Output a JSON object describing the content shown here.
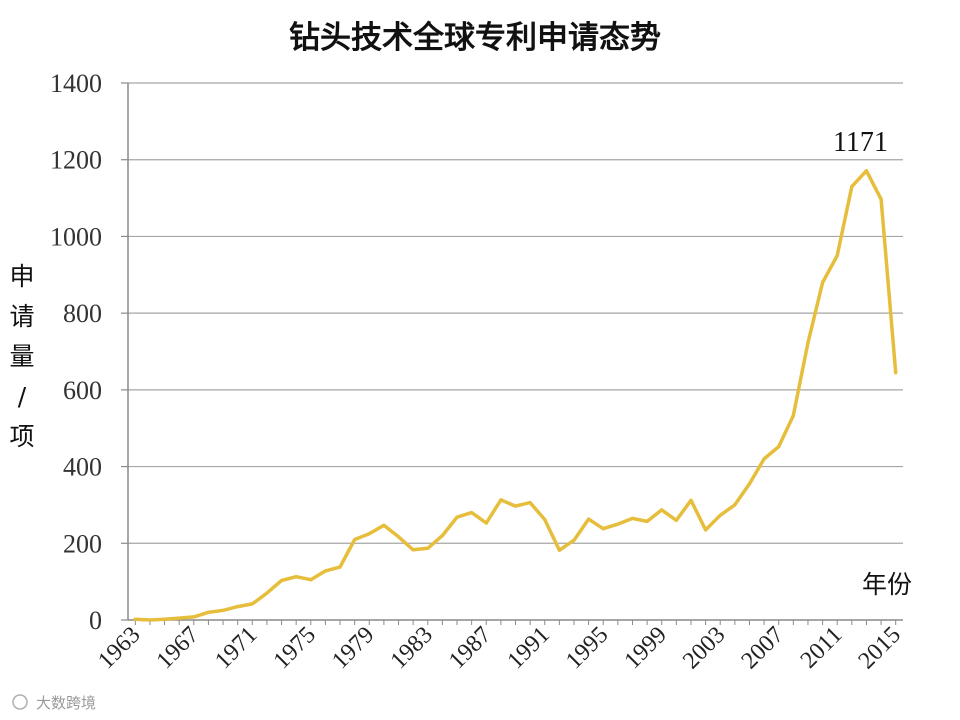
{
  "chart_data": {
    "type": "line",
    "title": "钻头技术全球专利申请态势",
    "xlabel": "年份",
    "ylabel": "申请量/项",
    "ylim": [
      0,
      1400
    ],
    "yticks": [
      0,
      200,
      400,
      600,
      800,
      1000,
      1200,
      1400
    ],
    "xticks": [
      "1963",
      "1967",
      "1971",
      "1975",
      "1979",
      "1983",
      "1987",
      "1991",
      "1995",
      "1999",
      "2003",
      "2007",
      "2011",
      "2015"
    ],
    "grid": true,
    "line_color": "#E6BE3C",
    "x": [
      1963,
      1964,
      1965,
      1966,
      1967,
      1968,
      1969,
      1970,
      1971,
      1972,
      1973,
      1974,
      1975,
      1976,
      1977,
      1978,
      1979,
      1980,
      1981,
      1982,
      1983,
      1984,
      1985,
      1986,
      1987,
      1988,
      1989,
      1990,
      1991,
      1992,
      1993,
      1994,
      1995,
      1996,
      1997,
      1998,
      1999,
      2000,
      2001,
      2002,
      2003,
      2004,
      2005,
      2006,
      2007,
      2008,
      2009,
      2010,
      2011,
      2012,
      2013,
      2014,
      2015
    ],
    "series": [
      {
        "values": [
          2,
          0,
          2,
          5,
          8,
          20,
          25,
          35,
          42,
          70,
          103,
          113,
          105,
          128,
          138,
          210,
          225,
          247,
          217,
          183,
          187,
          220,
          268,
          280,
          253,
          313,
          297,
          306,
          262,
          182,
          208,
          263,
          238,
          250,
          265,
          257,
          287,
          260,
          312,
          235,
          273,
          300,
          355,
          420,
          452,
          533,
          723,
          880,
          950,
          1130,
          1171,
          1097,
          645
        ]
      }
    ],
    "annotations": [
      {
        "text": "1171",
        "x": 2013,
        "y": 1171
      }
    ]
  },
  "watermark": "大数跨境"
}
